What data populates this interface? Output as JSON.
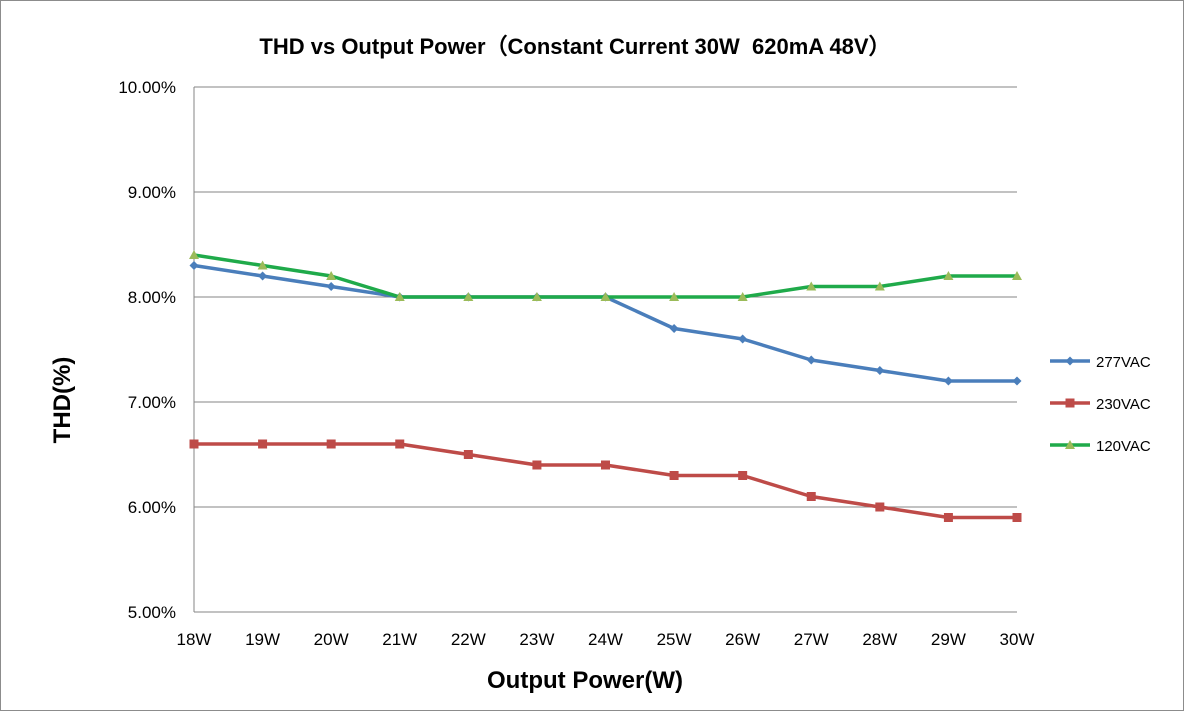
{
  "chart_data": {
    "type": "line",
    "title": "THD vs Output Power（Constant Current 30W  620mA 48V）",
    "xlabel": "Output Power(W)",
    "ylabel": "THD(%)",
    "categories": [
      "18W",
      "19W",
      "20W",
      "21W",
      "22W",
      "23W",
      "24W",
      "25W",
      "26W",
      "27W",
      "28W",
      "29W",
      "30W"
    ],
    "ylim": [
      5.0,
      10.0
    ],
    "yticks": [
      5.0,
      6.0,
      7.0,
      8.0,
      9.0,
      10.0
    ],
    "ytick_labels": [
      "5.00%",
      "6.00%",
      "7.00%",
      "8.00%",
      "9.00%",
      "10.00%"
    ],
    "grid": true,
    "legend_position": "right",
    "series": [
      {
        "name": "277VAC",
        "color": "#4a7ebb",
        "marker": "diamond",
        "values": [
          8.3,
          8.2,
          8.1,
          8.0,
          8.0,
          8.0,
          8.0,
          7.7,
          7.6,
          7.4,
          7.3,
          7.2,
          7.2
        ]
      },
      {
        "name": "230VAC",
        "color": "#be4b48",
        "marker": "square",
        "values": [
          6.6,
          6.6,
          6.6,
          6.6,
          6.5,
          6.4,
          6.4,
          6.3,
          6.3,
          6.1,
          6.0,
          5.9,
          5.9
        ]
      },
      {
        "name": "120VAC",
        "color": "#1faa4a",
        "marker": "triangle",
        "marker_color": "#9bbb59",
        "values": [
          8.4,
          8.3,
          8.2,
          8.0,
          8.0,
          8.0,
          8.0,
          8.0,
          8.0,
          8.1,
          8.1,
          8.2,
          8.2
        ]
      }
    ]
  }
}
